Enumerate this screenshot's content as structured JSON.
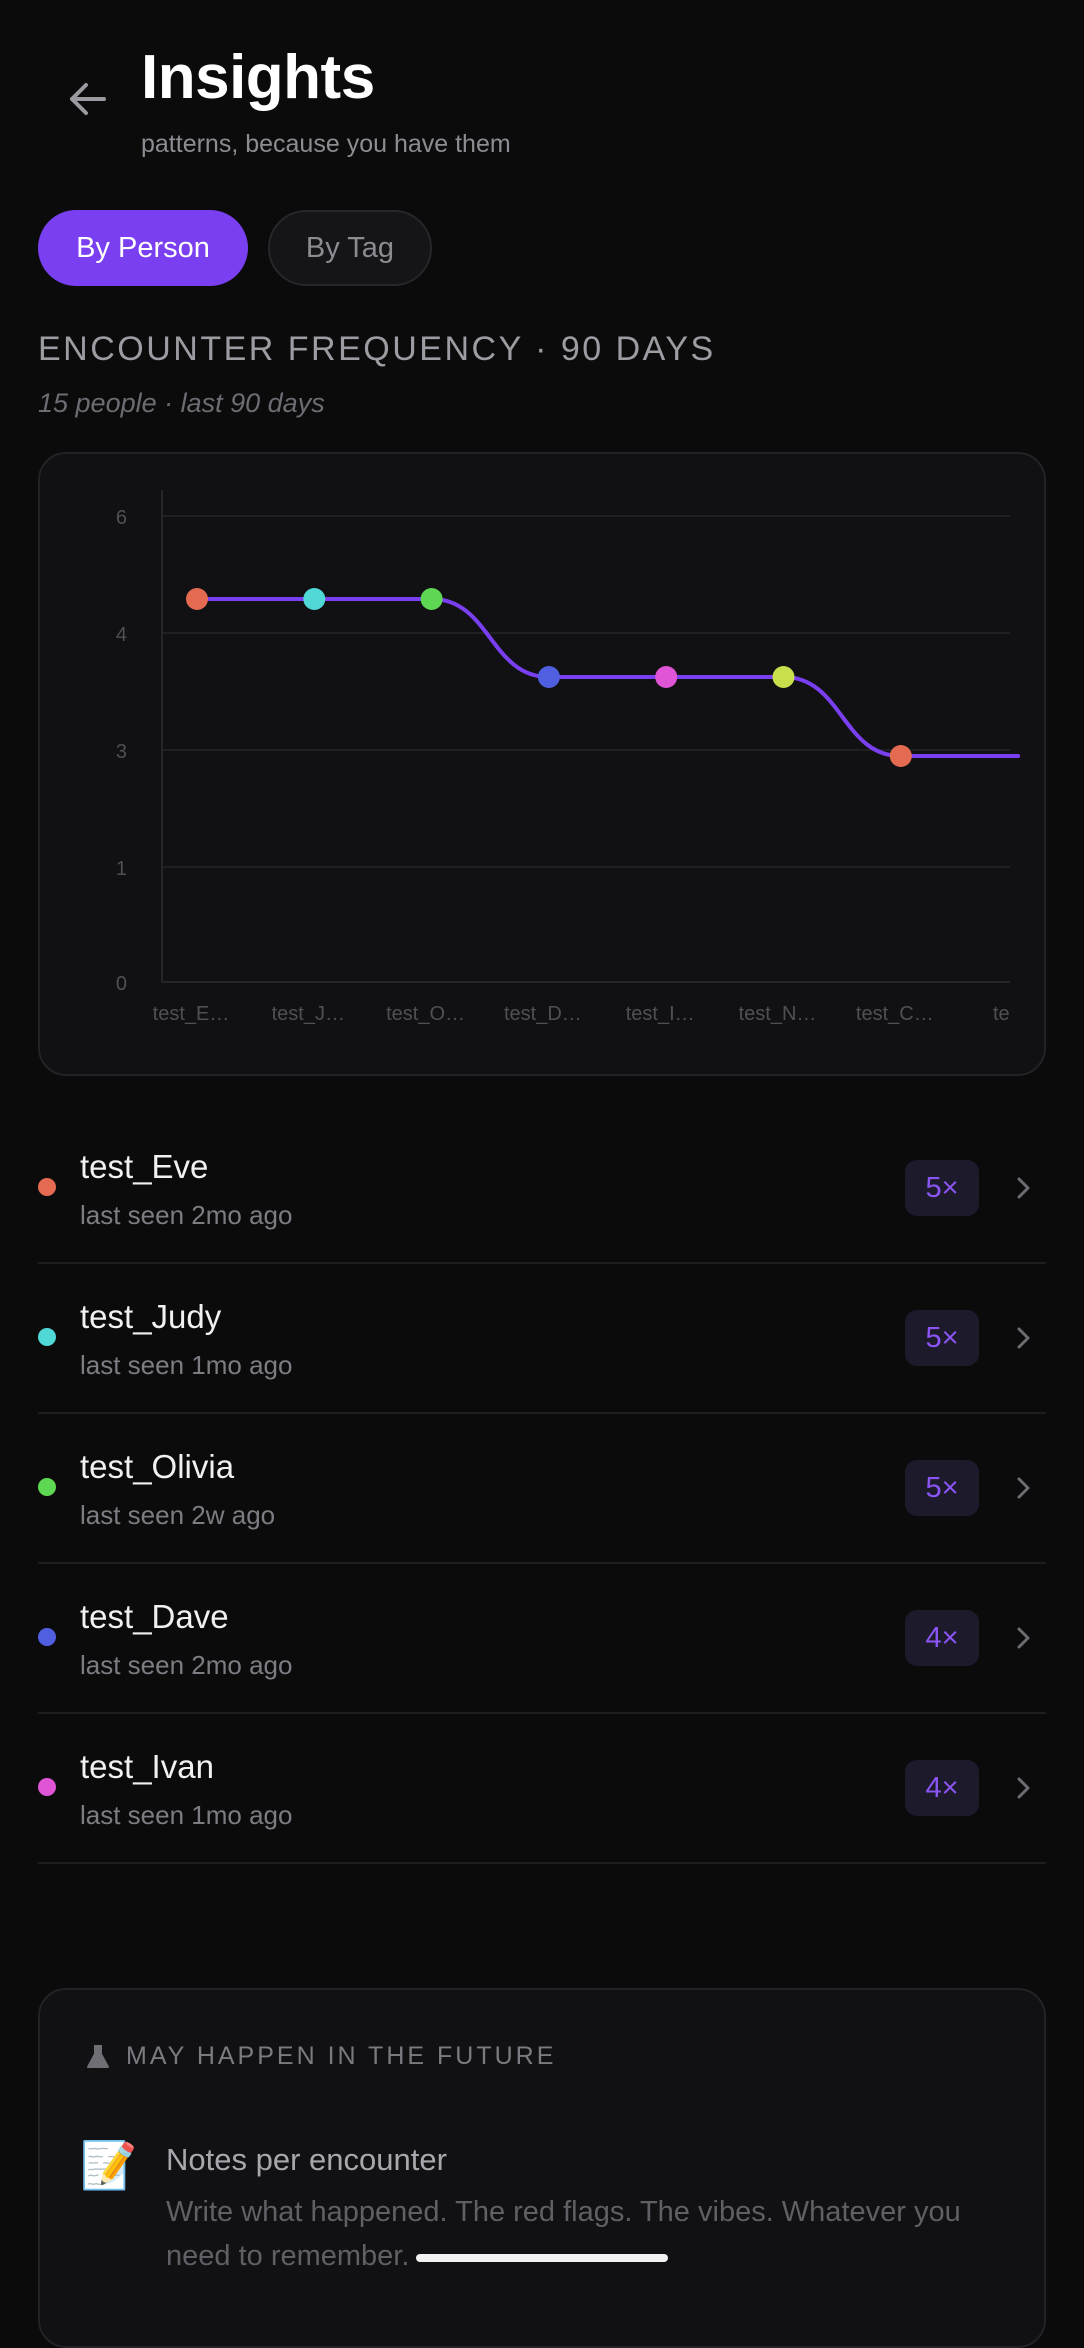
{
  "header": {
    "title": "Insights",
    "subtitle": "patterns, because you have them"
  },
  "tabs": [
    {
      "label": "By Person",
      "active": true
    },
    {
      "label": "By Tag",
      "active": false
    }
  ],
  "section": {
    "title": "ENCOUNTER FREQUENCY · 90 DAYS",
    "subtitle": "15 people · last 90 days"
  },
  "colors": {
    "accent": "#7a3ff0",
    "line": "#7b3ff2",
    "background": "#0b0b0c"
  },
  "chart_data": {
    "type": "line",
    "categories": [
      "test_E…",
      "test_J…",
      "test_O…",
      "test_D…",
      "test_I…",
      "test_N…",
      "test_C…",
      "te"
    ],
    "y_ticks": [
      "0",
      "1",
      "3",
      "4",
      "6"
    ],
    "ylim": [
      0,
      6
    ],
    "smooth": true,
    "grid": true,
    "series": [
      {
        "values": [
          5,
          5,
          5,
          4,
          4,
          4,
          3,
          3
        ],
        "point_colors": [
          "#e46a52",
          "#4fd8d6",
          "#5ed852",
          "#4f5fe0",
          "#e054d6",
          "#c9df4c",
          "#e46a52",
          null
        ]
      }
    ]
  },
  "people": [
    {
      "name": "test_Eve",
      "meta": "last seen 2mo ago",
      "count": "5×",
      "color": "#e46a52"
    },
    {
      "name": "test_Judy",
      "meta": "last seen 1mo ago",
      "count": "5×",
      "color": "#4fd8d6"
    },
    {
      "name": "test_Olivia",
      "meta": "last seen 2w ago",
      "count": "5×",
      "color": "#5ed852"
    },
    {
      "name": "test_Dave",
      "meta": "last seen 2mo ago",
      "count": "4×",
      "color": "#4f5fe0"
    },
    {
      "name": "test_Ivan",
      "meta": "last seen 1mo ago",
      "count": "4×",
      "color": "#e054d6"
    }
  ],
  "future": {
    "label": "MAY HAPPEN IN THE FUTURE",
    "icon": "flask-icon",
    "emoji": "📝",
    "title": "Notes per encounter",
    "text": "Write what happened. The red flags. The vibes. Whatever you need to remember."
  }
}
